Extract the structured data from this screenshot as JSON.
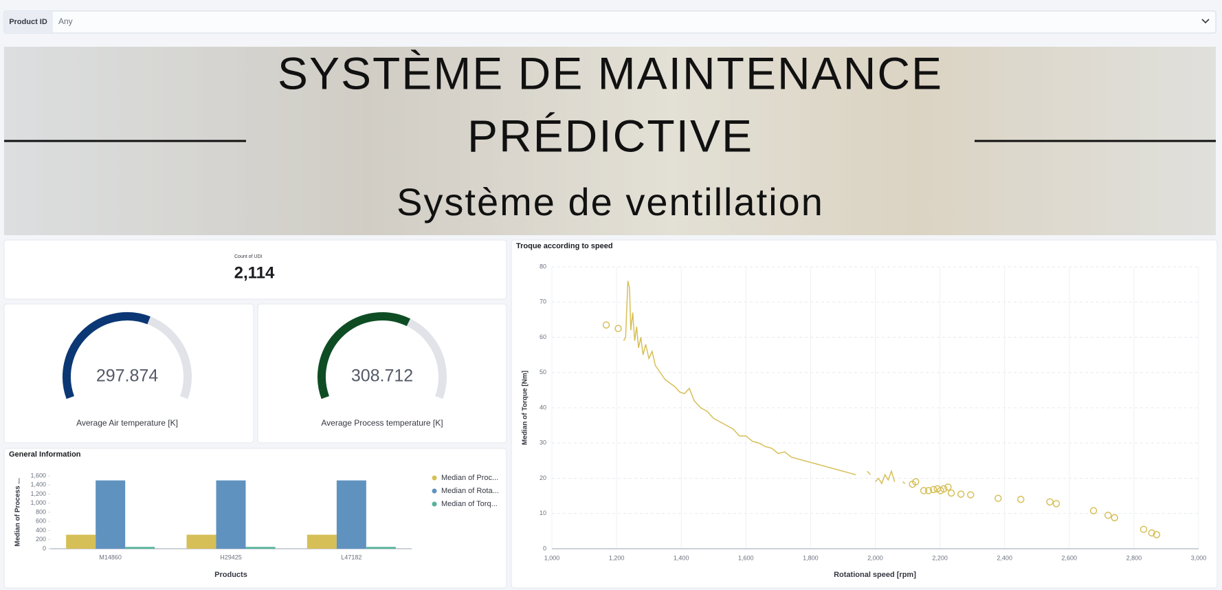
{
  "filter": {
    "label": "Product ID",
    "value": "Any"
  },
  "banner": {
    "title_lines": [
      "SYSTÈME DE MAINTENANCE",
      "PRÉDICTIVE"
    ],
    "subtitle": "Système de ventillation"
  },
  "metric": {
    "label": "Count of UDI",
    "value": "2,114"
  },
  "gauges": {
    "range": [
      0,
      500
    ],
    "items": [
      {
        "label": "Average Air temperature [K]",
        "value": 297.874,
        "color": "#0b3875"
      },
      {
        "label": "Average Process temperature [K]",
        "value": 308.712,
        "color": "#0e4d24"
      }
    ]
  },
  "chart_data": [
    {
      "type": "bar",
      "title": "General Information",
      "x_label": "Products",
      "y_label": "Median of Process ...",
      "categories": [
        "M14860",
        "H29425",
        "L47182"
      ],
      "series": [
        {
          "name": "Median of Proc...",
          "color": "#d6bf57",
          "values": [
            308,
            308,
            308
          ]
        },
        {
          "name": "Median of Rota...",
          "color": "#6092c0",
          "values": [
            1500,
            1500,
            1500
          ]
        },
        {
          "name": "Median of Torq...",
          "color": "#54b399",
          "values": [
            40,
            40,
            40
          ]
        }
      ],
      "ylim": [
        0,
        1600
      ],
      "yticks": [
        0,
        200,
        400,
        600,
        800,
        {
          "value": 1000,
          "label": "1,000"
        },
        {
          "value": 1200,
          "label": "1,200"
        },
        {
          "value": 1400,
          "label": "1,400"
        },
        {
          "value": 1600,
          "label": "1,600"
        }
      ],
      "grid": false
    },
    {
      "type": "line",
      "title": "Troque according to speed",
      "x_label": "Rotational speed [rpm]",
      "y_label": "Median of Torque [Nm]",
      "xlim": [
        1000,
        3000
      ],
      "xticks": [
        {
          "value": 1000,
          "label": "1,000"
        },
        {
          "value": 1200,
          "label": "1,200"
        },
        {
          "value": 1400,
          "label": "1,400"
        },
        {
          "value": 1600,
          "label": "1,600"
        },
        {
          "value": 1800,
          "label": "1,800"
        },
        {
          "value": 2000,
          "label": "2,000"
        },
        {
          "value": 2200,
          "label": "2,200"
        },
        {
          "value": 2400,
          "label": "2,400"
        },
        {
          "value": 2600,
          "label": "2,600"
        },
        {
          "value": 2800,
          "label": "2,800"
        },
        {
          "value": 3000,
          "label": "3,000"
        }
      ],
      "ylim": [
        0,
        80
      ],
      "yticks": [
        0,
        10,
        20,
        30,
        40,
        50,
        60,
        70,
        80
      ],
      "grid": true,
      "series": [
        {
          "color": "#d6bf57",
          "x": [
            1168,
            null,
            1205,
            null,
            1222,
            1228,
            1235,
            1240,
            1244,
            1250,
            1256,
            1262,
            1268,
            1275,
            1282,
            1290,
            1300,
            1310,
            1320,
            1335,
            1350,
            1365,
            1380,
            1395,
            1410,
            1425,
            1440,
            1460,
            1480,
            1500,
            1520,
            1540,
            1560,
            1580,
            1600,
            1620,
            1640,
            1660,
            1680,
            1700,
            1720,
            1740,
            1760,
            1780,
            1800,
            1820,
            1840,
            1860,
            1880,
            1900,
            1920,
            1940,
            null,
            1975,
            1985,
            null,
            2000,
            2010,
            2020,
            2030,
            2040,
            2050,
            2060,
            null,
            2085,
            2092,
            null,
            2115,
            null,
            2125,
            null,
            2150,
            null,
            2165,
            null,
            2180,
            null,
            2192,
            null,
            2202,
            null,
            2212,
            null,
            2225,
            null,
            2235,
            null,
            2265,
            null,
            2295,
            null,
            2380,
            null,
            2450,
            null,
            2540,
            null,
            2560,
            null,
            2675,
            null,
            2720,
            null,
            2740,
            null,
            2830,
            null,
            2855,
            null,
            2870
          ],
          "values": [
            63.5,
            null,
            62.5,
            null,
            59,
            60,
            76,
            74,
            62,
            67,
            59,
            63,
            57,
            60,
            55,
            58,
            54,
            56,
            52,
            50,
            48,
            47,
            46,
            44.5,
            44,
            45.5,
            42,
            40,
            39,
            37,
            36,
            35,
            34,
            32,
            32,
            30.5,
            30,
            29,
            28.5,
            27,
            27.5,
            26,
            25.5,
            25,
            24.5,
            24,
            23.5,
            23,
            22.5,
            22,
            21.5,
            21,
            null,
            22,
            21,
            null,
            19,
            20,
            18.5,
            21,
            19.5,
            22,
            19,
            null,
            19,
            18.5,
            null,
            18.3,
            null,
            19,
            null,
            16.5,
            null,
            16.5,
            null,
            16.8,
            null,
            17,
            null,
            16.5,
            null,
            17,
            null,
            17.5,
            null,
            15.8,
            null,
            15.5,
            null,
            15.3,
            null,
            14.3,
            null,
            14,
            null,
            13.3,
            null,
            12.8,
            null,
            10.8,
            null,
            9.5,
            null,
            8.8,
            null,
            5.5,
            null,
            4.5,
            null,
            4
          ]
        }
      ]
    }
  ]
}
